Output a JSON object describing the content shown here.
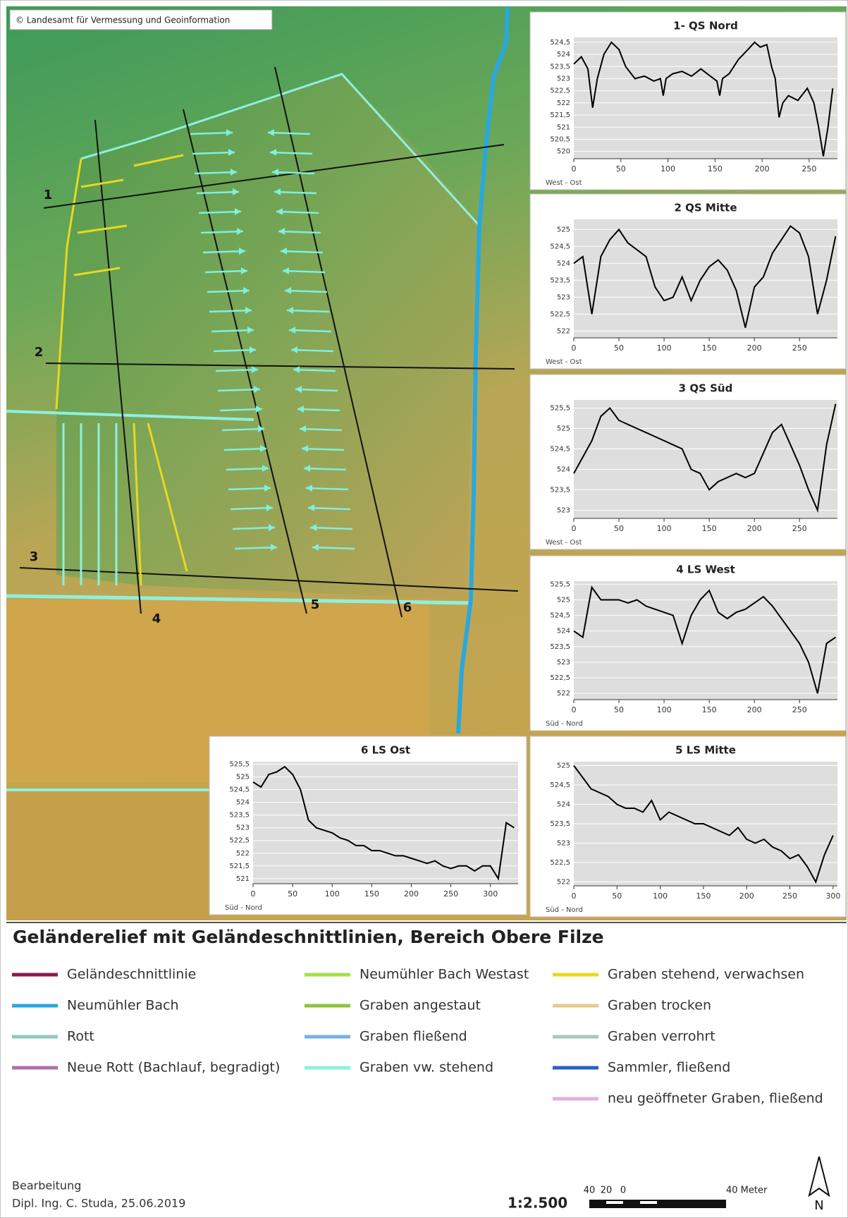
{
  "map": {
    "copyright": "© Landesamt für Vermessung und Geoinformation",
    "section_labels": [
      "1",
      "2",
      "3",
      "4",
      "5",
      "6"
    ]
  },
  "chart_data": [
    {
      "type": "line",
      "title": "1- QS Nord",
      "x_label": "West - Ost",
      "color": "#000000",
      "grid": true,
      "x": [
        0,
        8,
        15,
        20,
        25,
        32,
        40,
        48,
        55,
        65,
        75,
        85,
        92,
        95,
        98,
        105,
        115,
        125,
        135,
        145,
        152,
        155,
        158,
        165,
        175,
        185,
        192,
        198,
        205,
        210,
        214,
        218,
        222,
        228,
        238,
        248,
        255,
        260,
        265,
        270,
        275
      ],
      "values": [
        523.6,
        523.9,
        523.4,
        521.8,
        523.0,
        524.0,
        524.5,
        524.2,
        523.5,
        523.0,
        523.1,
        522.9,
        523.0,
        522.3,
        523.0,
        523.2,
        523.3,
        523.1,
        523.4,
        523.1,
        522.9,
        522.3,
        523.0,
        523.2,
        523.8,
        524.2,
        524.5,
        524.3,
        524.4,
        523.5,
        523.0,
        521.4,
        522.0,
        522.3,
        522.1,
        522.6,
        522.0,
        521.0,
        519.8,
        521.0,
        522.6
      ],
      "xlim": [
        0,
        280
      ],
      "ylim": [
        519.7,
        524.7
      ],
      "xticks": [
        0,
        50,
        100,
        150,
        200,
        250
      ],
      "yticks": [
        {
          "value": 524.5,
          "label": "524,5"
        },
        524,
        {
          "value": 523.5,
          "label": "523,5"
        },
        523,
        {
          "value": 522.5,
          "label": "522,5"
        },
        522,
        {
          "value": 521.5,
          "label": "521,5"
        },
        521,
        {
          "value": 520.5,
          "label": "520,5"
        },
        520
      ]
    },
    {
      "type": "line",
      "title": "2 QS Mitte",
      "x_label": "West - Ost",
      "color": "#000000",
      "grid": true,
      "x": [
        0,
        10,
        20,
        30,
        40,
        50,
        60,
        70,
        80,
        90,
        100,
        110,
        120,
        130,
        140,
        150,
        160,
        170,
        180,
        190,
        200,
        210,
        220,
        230,
        240,
        250,
        260,
        270,
        280,
        290
      ],
      "values": [
        524.0,
        524.2,
        522.5,
        524.2,
        524.7,
        525.0,
        524.6,
        524.4,
        524.2,
        523.3,
        522.9,
        523.0,
        523.6,
        522.9,
        523.5,
        523.9,
        524.1,
        523.8,
        523.2,
        522.1,
        523.3,
        523.6,
        524.3,
        524.7,
        525.1,
        524.9,
        524.2,
        522.5,
        523.5,
        524.8
      ],
      "xlim": [
        0,
        292
      ],
      "ylim": [
        521.8,
        525.3
      ],
      "xticks": [
        0,
        50,
        100,
        150,
        200,
        250
      ],
      "yticks": [
        525,
        {
          "value": 524.5,
          "label": "524,5"
        },
        524,
        {
          "value": 523.5,
          "label": "523,5"
        },
        523,
        {
          "value": 522.5,
          "label": "522,5"
        },
        522
      ]
    },
    {
      "type": "line",
      "title": "3 QS Süd",
      "x_label": "West - Ost",
      "color": "#000000",
      "grid": true,
      "x": [
        0,
        10,
        20,
        30,
        40,
        50,
        60,
        70,
        80,
        90,
        100,
        110,
        120,
        130,
        140,
        150,
        160,
        170,
        180,
        190,
        200,
        210,
        220,
        230,
        240,
        250,
        260,
        270,
        280,
        290
      ],
      "values": [
        523.9,
        524.3,
        524.7,
        525.3,
        525.5,
        525.2,
        525.1,
        525.0,
        524.9,
        524.8,
        524.7,
        524.6,
        524.5,
        524.0,
        523.9,
        523.5,
        523.7,
        523.8,
        523.9,
        523.8,
        523.9,
        524.4,
        524.9,
        525.1,
        524.6,
        524.1,
        523.5,
        523.0,
        524.6,
        525.6
      ],
      "xlim": [
        0,
        292
      ],
      "ylim": [
        522.8,
        525.7
      ],
      "xticks": [
        0,
        50,
        100,
        150,
        200,
        250
      ],
      "yticks": [
        {
          "value": 525.5,
          "label": "525,5"
        },
        525,
        {
          "value": 524.5,
          "label": "524,5"
        },
        524,
        {
          "value": 523.5,
          "label": "523,5"
        },
        523
      ]
    },
    {
      "type": "line",
      "title": "4 LS West",
      "x_label": "Süd - Nord",
      "color": "#000000",
      "grid": true,
      "x": [
        0,
        10,
        20,
        30,
        40,
        50,
        60,
        70,
        80,
        90,
        100,
        110,
        120,
        130,
        140,
        150,
        160,
        170,
        180,
        190,
        200,
        210,
        220,
        230,
        240,
        250,
        260,
        270,
        280,
        290
      ],
      "values": [
        524.0,
        523.8,
        525.4,
        525.0,
        525.0,
        525.0,
        524.9,
        525.0,
        524.8,
        524.7,
        524.6,
        524.5,
        523.6,
        524.5,
        525.0,
        525.3,
        524.6,
        524.4,
        524.6,
        524.7,
        524.9,
        525.1,
        524.8,
        524.4,
        524.0,
        523.6,
        523.0,
        522.0,
        523.6,
        523.8
      ],
      "xlim": [
        0,
        292
      ],
      "ylim": [
        521.8,
        525.6
      ],
      "xticks": [
        0,
        50,
        100,
        150,
        200,
        250
      ],
      "yticks": [
        {
          "value": 525.5,
          "label": "525,5"
        },
        525,
        {
          "value": 524.5,
          "label": "524,5"
        },
        524,
        {
          "value": 523.5,
          "label": "523,5"
        },
        523,
        {
          "value": 522.5,
          "label": "522,5"
        },
        522
      ]
    },
    {
      "type": "line",
      "title": "5 LS Mitte",
      "x_label": "Süd - Nord",
      "color": "#000000",
      "grid": true,
      "x": [
        0,
        10,
        20,
        30,
        40,
        50,
        60,
        70,
        80,
        90,
        100,
        110,
        120,
        130,
        140,
        150,
        160,
        170,
        180,
        190,
        200,
        210,
        220,
        230,
        240,
        250,
        260,
        270,
        280,
        290,
        300
      ],
      "values": [
        525.0,
        524.7,
        524.4,
        524.3,
        524.2,
        524.0,
        523.9,
        523.9,
        523.8,
        524.1,
        523.6,
        523.8,
        523.7,
        523.6,
        523.5,
        523.5,
        523.4,
        523.3,
        523.2,
        523.4,
        523.1,
        523.0,
        523.1,
        522.9,
        522.8,
        522.6,
        522.7,
        522.4,
        522.0,
        522.7,
        523.2
      ],
      "xlim": [
        0,
        305
      ],
      "ylim": [
        521.9,
        525.1
      ],
      "xticks": [
        0,
        50,
        100,
        150,
        200,
        250,
        300
      ],
      "yticks": [
        525,
        {
          "value": 524.5,
          "label": "524,5"
        },
        524,
        {
          "value": 523.5,
          "label": "523,5"
        },
        523,
        {
          "value": 522.5,
          "label": "522,5"
        },
        522
      ]
    },
    {
      "type": "line",
      "title": "6 LS Ost",
      "x_label": "Süd - Nord",
      "color": "#000000",
      "grid": true,
      "x": [
        0,
        10,
        20,
        30,
        40,
        50,
        60,
        70,
        80,
        90,
        100,
        110,
        120,
        130,
        140,
        150,
        160,
        170,
        180,
        190,
        200,
        210,
        220,
        230,
        240,
        250,
        260,
        270,
        280,
        290,
        300,
        310,
        320,
        330
      ],
      "values": [
        524.8,
        524.6,
        525.1,
        525.2,
        525.4,
        525.1,
        524.5,
        523.3,
        523.0,
        522.9,
        522.8,
        522.6,
        522.5,
        522.3,
        522.3,
        522.1,
        522.1,
        522.0,
        521.9,
        521.9,
        521.8,
        521.7,
        521.6,
        521.7,
        521.5,
        521.4,
        521.5,
        521.5,
        521.3,
        521.5,
        521.5,
        521.0,
        523.2,
        523.0
      ],
      "xlim": [
        0,
        335
      ],
      "ylim": [
        520.8,
        525.6
      ],
      "xticks": [
        0,
        50,
        100,
        150,
        200,
        250,
        300
      ],
      "yticks": [
        {
          "value": 525.5,
          "label": "525,5"
        },
        525,
        {
          "value": 524.5,
          "label": "524,5"
        },
        524,
        {
          "value": 523.5,
          "label": "523,5"
        },
        523,
        {
          "value": 522.5,
          "label": "522,5"
        },
        522,
        {
          "value": 521.5,
          "label": "521,5"
        },
        521
      ]
    }
  ],
  "legend": {
    "title": "Geländerelief mit Geländeschnittlinien, Bereich Obere Filze",
    "items": [
      {
        "label": "Geländeschnittlinie",
        "color": "#8b1a4a"
      },
      {
        "label": "Neumühler Bach",
        "color": "#29a8e0"
      },
      {
        "label": "Rott",
        "color": "#8fc9c0"
      },
      {
        "label": "Neue Rott (Bachlauf, begradigt)",
        "color": "#b070b0"
      },
      {
        "label": "Neumühler Bach Westast",
        "color": "#a6e04a"
      },
      {
        "label": "Graben angestaut",
        "color": "#8cc43c"
      },
      {
        "label": "Graben fließend",
        "color": "#7ab0e8"
      },
      {
        "label": "Graben vw. stehend",
        "color": "#8ef0e0"
      },
      {
        "label": "Graben stehend, verwachsen",
        "color": "#e8d820"
      },
      {
        "label": "Graben trocken",
        "color": "#e8c890"
      },
      {
        "label": "Graben verrohrt",
        "color": "#a8c8c0"
      },
      {
        "label": "Sammler, fließend",
        "color": "#2a60c8"
      },
      {
        "label": "neu geöffneter Graben, fließend",
        "color": "#e0b0e0"
      }
    ]
  },
  "footer": {
    "heading": "Bearbeitung",
    "author": "Dipl. Ing. C. Studa, 25.06.2019",
    "scale": "1:2.500",
    "scale_ticks": [
      "40",
      "20",
      "0",
      "40 Meter"
    ],
    "north": "N"
  }
}
